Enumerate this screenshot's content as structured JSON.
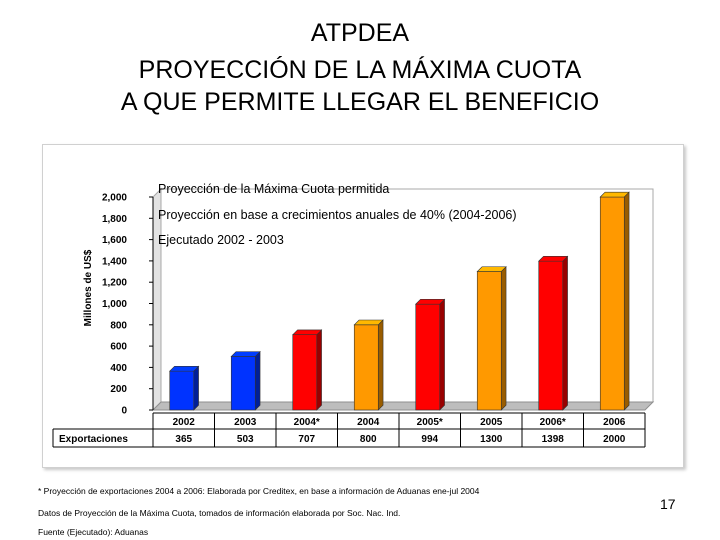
{
  "slide": {
    "title_lines": [
      "ATPDEA",
      "PROYECCIÓN DE LA MÁXIMA CUOTA",
      "A QUE PERMITE LLEGAR EL BENEFICIO"
    ],
    "footnotes": [
      "* Proyección de exportaciones 2004 a 2006: Elaborada por Creditex, en base a información de Aduanas ene-jul 2004",
      "Datos de Proyección de la Máxima Cuota, tomados de información elaborada por Soc. Nac. Ind.",
      "Fuente (Ejecutado): Aduanas"
    ],
    "page_number": "17"
  },
  "chart_data": {
    "type": "bar",
    "ylabel": "Millones de US$",
    "ylim": [
      0,
      2000
    ],
    "yticks": [
      "0",
      "200",
      "400",
      "600",
      "800",
      "1,000",
      "1,200",
      "1,400",
      "1,600",
      "1,800",
      "2,000"
    ],
    "categories": [
      "2002",
      "2003",
      "2004*",
      "2004",
      "2005*",
      "2005",
      "2006*",
      "2006"
    ],
    "values": [
      365,
      503,
      707,
      800,
      994,
      1300,
      1398,
      2000
    ],
    "bar_series": [
      "ejecutado",
      "ejecutado",
      "crecimiento",
      "maxima",
      "crecimiento",
      "maxima",
      "crecimiento",
      "maxima"
    ],
    "series": [
      {
        "key": "maxima",
        "name": "Proyección de la Máxima Cuota permitida",
        "color": "#ff9900"
      },
      {
        "key": "crecimiento",
        "name": "Proyección en base a crecimientos anuales de 40%  (2004-2006)",
        "color": "#ff0000"
      },
      {
        "key": "ejecutado",
        "name": "Ejecutado 2002 - 2003",
        "color": "#0033ff"
      }
    ],
    "table_row_label": "Exportaciones",
    "table_values": [
      "365",
      "503",
      "707",
      "800",
      "994",
      "1300",
      "1398",
      "2000"
    ],
    "grid": false
  }
}
